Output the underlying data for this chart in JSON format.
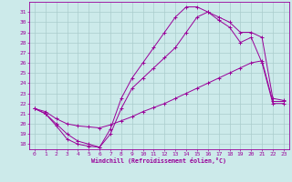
{
  "xlabel": "Windchill (Refroidissement éolien,°C)",
  "bg_color": "#cceaea",
  "grid_color": "#aacccc",
  "line_color": "#990099",
  "xlim": [
    -0.5,
    23.5
  ],
  "ylim": [
    17.5,
    32.0
  ],
  "xticks": [
    0,
    1,
    2,
    3,
    4,
    5,
    6,
    7,
    8,
    9,
    10,
    11,
    12,
    13,
    14,
    15,
    16,
    17,
    18,
    19,
    20,
    21,
    22,
    23
  ],
  "yticks": [
    18,
    19,
    20,
    21,
    22,
    23,
    24,
    25,
    26,
    27,
    28,
    29,
    30,
    31
  ],
  "line1_x": [
    0,
    1,
    2,
    3,
    4,
    5,
    6,
    7,
    8,
    9,
    10,
    11,
    12,
    13,
    14,
    15,
    16,
    17,
    18,
    19,
    20,
    21,
    22,
    23
  ],
  "line1_y": [
    21.5,
    21.0,
    20.0,
    19.0,
    18.3,
    18.0,
    17.7,
    19.5,
    22.5,
    24.5,
    26.0,
    27.5,
    29.0,
    30.5,
    31.5,
    31.5,
    31.0,
    30.5,
    30.0,
    29.0,
    29.0,
    28.5,
    22.5,
    22.3
  ],
  "line2_x": [
    0,
    1,
    2,
    3,
    4,
    5,
    6,
    7,
    8,
    9,
    10,
    11,
    12,
    13,
    14,
    15,
    16,
    17,
    18,
    19,
    20,
    21,
    22,
    23
  ],
  "line2_y": [
    21.5,
    21.0,
    19.8,
    18.5,
    18.0,
    17.8,
    17.7,
    19.0,
    21.5,
    23.5,
    24.5,
    25.5,
    26.5,
    27.5,
    29.0,
    30.5,
    31.0,
    30.2,
    29.5,
    28.0,
    28.5,
    26.0,
    22.0,
    22.0
  ],
  "line3_x": [
    0,
    1,
    2,
    3,
    4,
    5,
    6,
    7,
    8,
    9,
    10,
    11,
    12,
    13,
    14,
    15,
    16,
    17,
    18,
    19,
    20,
    21,
    22,
    23
  ],
  "line3_y": [
    21.5,
    21.2,
    20.5,
    20.0,
    19.8,
    19.7,
    19.6,
    19.9,
    20.3,
    20.7,
    21.2,
    21.6,
    22.0,
    22.5,
    23.0,
    23.5,
    24.0,
    24.5,
    25.0,
    25.5,
    26.0,
    26.2,
    22.2,
    22.2
  ]
}
